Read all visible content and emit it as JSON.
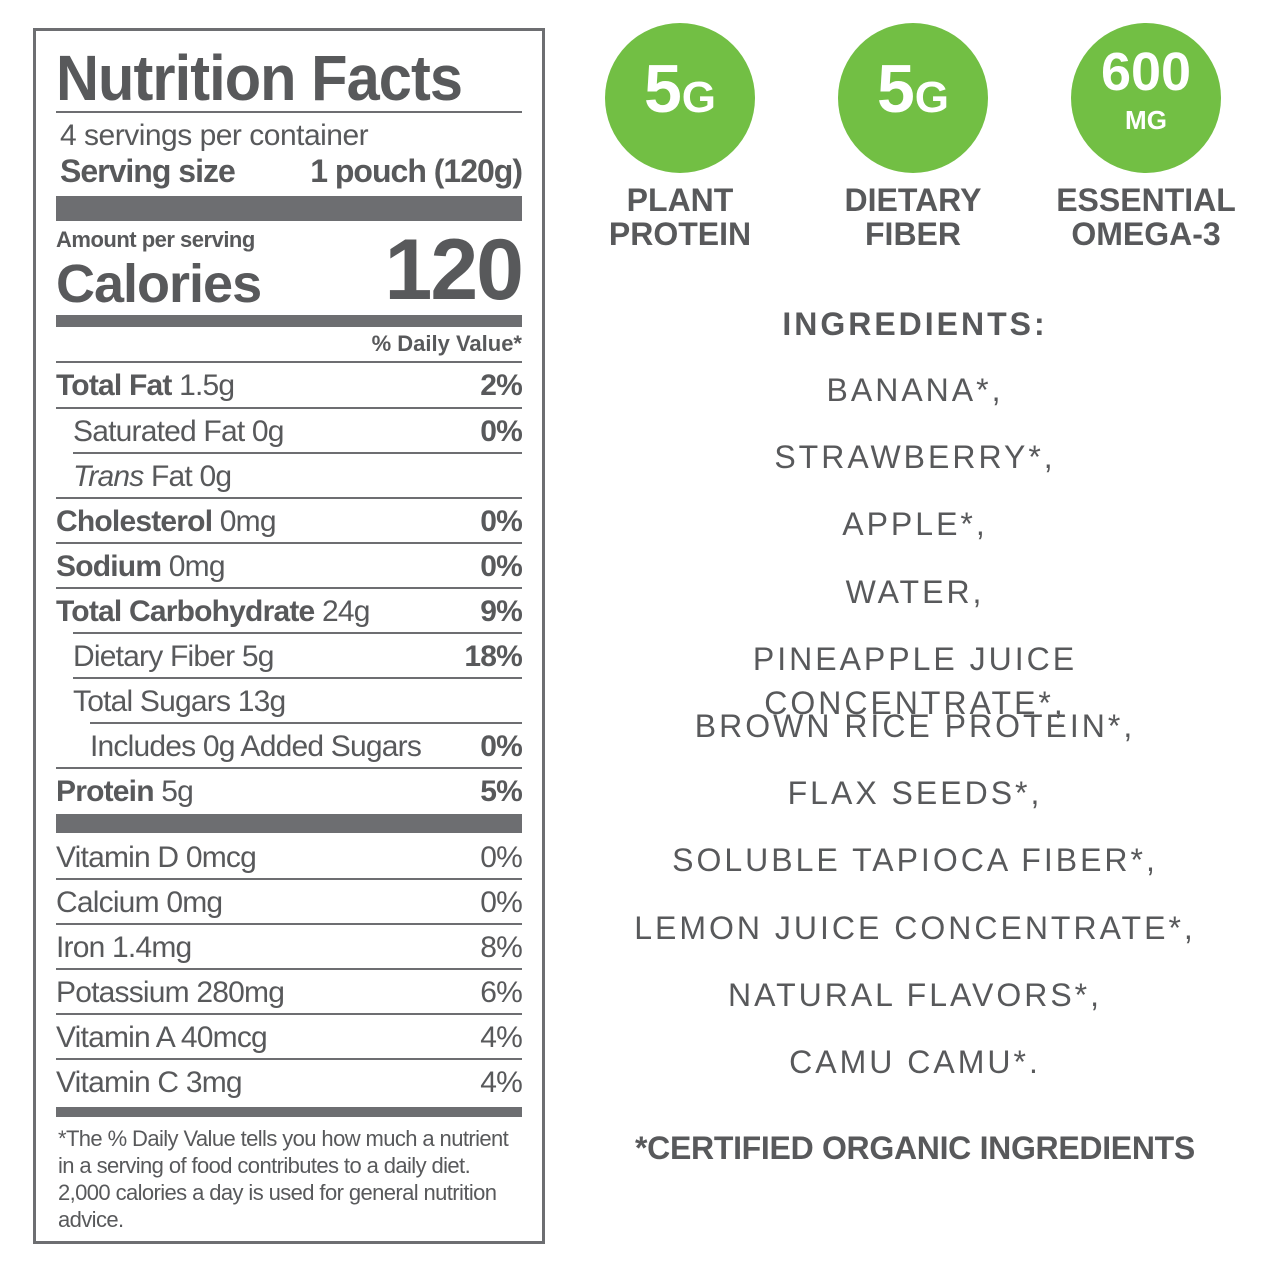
{
  "nutrition": {
    "title": "Nutrition Facts",
    "servings_per_container": "4 servings per container",
    "serving_size_label": "Serving size",
    "serving_size_value": "1 pouch (120g)",
    "amount_per_serving": "Amount per serving",
    "calories_label": "Calories",
    "calories_value": "120",
    "daily_value_header": "% Daily Value*",
    "nutrients": [
      {
        "name": "Total Fat",
        "amount": "1.5g",
        "dv": "2%"
      },
      {
        "name": "Saturated Fat",
        "amount": "0g",
        "dv": "0%"
      },
      {
        "name": "Trans",
        "name_suffix": "Fat",
        "amount": "0g",
        "dv": ""
      },
      {
        "name": "Cholesterol",
        "amount": "0mg",
        "dv": "0%"
      },
      {
        "name": "Sodium",
        "amount": "0mg",
        "dv": "0%"
      },
      {
        "name": "Total Carbohydrate",
        "amount": "24g",
        "dv": "9%"
      },
      {
        "name": "Dietary Fiber",
        "amount": "5g",
        "dv": "18%"
      },
      {
        "name": "Total Sugars",
        "amount": "13g",
        "dv": ""
      },
      {
        "name": "Includes 0g Added Sugars",
        "amount": "",
        "dv": "0%"
      },
      {
        "name": "Protein",
        "amount": "5g",
        "dv": "5%"
      }
    ],
    "vitamins": [
      {
        "name": "Vitamin D",
        "amount": "0mcg",
        "dv": "0%"
      },
      {
        "name": "Calcium",
        "amount": "0mg",
        "dv": "0%"
      },
      {
        "name": "Iron",
        "amount": "1.4mg",
        "dv": "8%"
      },
      {
        "name": "Potassium",
        "amount": "280mg",
        "dv": "6%"
      },
      {
        "name": "Vitamin A",
        "amount": "40mcg",
        "dv": "4%"
      },
      {
        "name": "Vitamin C",
        "amount": "3mg",
        "dv": "4%"
      }
    ],
    "footnote": "*The % Daily Value tells you how much a nutrient in a serving of food contributes to a daily diet. 2,000 calories a day is used for general nutrition advice."
  },
  "badges": [
    {
      "value": "5",
      "unit": "G",
      "caption_line1": "PLANT",
      "caption_line2": "PROTEIN"
    },
    {
      "value": "5",
      "unit": "G",
      "caption_line1": "DIETARY",
      "caption_line2": "FIBER"
    },
    {
      "value": "600",
      "unit": "MG",
      "caption_line1": "ESSENTIAL",
      "caption_line2": "OMEGA-3"
    }
  ],
  "ingredients": {
    "title": "INGREDIENTS:",
    "items": [
      "BANANA*,",
      "STRAWBERRY*,",
      "APPLE*,",
      "WATER,",
      "PINEAPPLE JUICE CONCENTRATE*,",
      "BROWN RICE PROTEIN*,",
      "FLAX SEEDS*,",
      "SOLUBLE TAPIOCA FIBER*,",
      "LEMON JUICE CONCENTRATE*,",
      "NATURAL FLAVORS*,",
      "CAMU CAMU*."
    ],
    "organic_note": "*CERTIFIED ORGANIC INGREDIENTS"
  },
  "colors": {
    "text": "#58595b",
    "rule": "#6d6e71",
    "badge_green": "#72bf44"
  }
}
